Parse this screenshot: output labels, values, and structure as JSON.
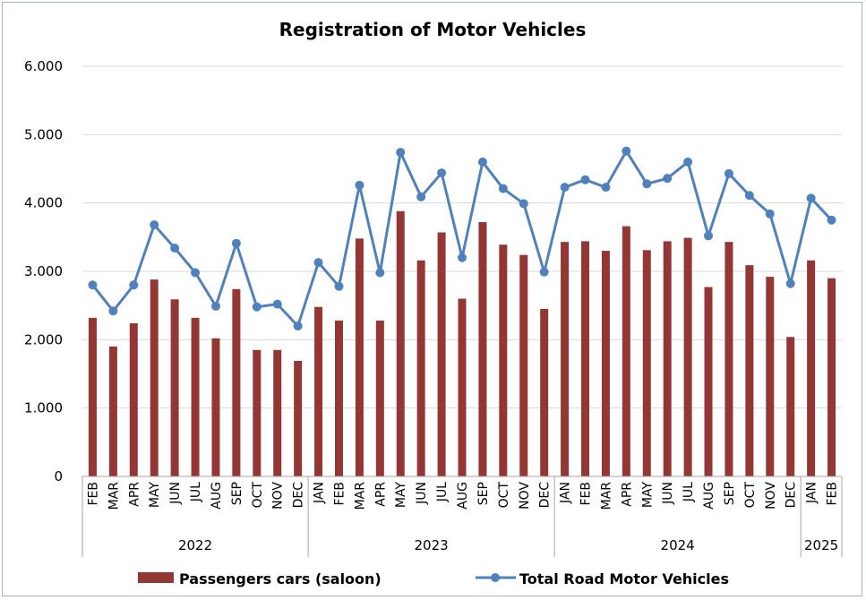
{
  "chart_data": {
    "type": "bar",
    "title": "Registration of Motor Vehicles",
    "xlabel": "",
    "ylabel": "",
    "ylim": [
      0,
      6000
    ],
    "yticks": [
      0,
      1000,
      2000,
      3000,
      4000,
      5000,
      6000
    ],
    "ytick_labels": [
      "0",
      "1.000",
      "2.000",
      "3.000",
      "4.000",
      "5.000",
      "6.000"
    ],
    "grid": "horizontal",
    "legend_position": "bottom",
    "categories": [
      "FEB",
      "MAR",
      "APR",
      "MAY",
      "JUN",
      "JUL",
      "AUG",
      "SEP",
      "OCT",
      "NOV",
      "DEC",
      "JAN",
      "FEB",
      "MAR",
      "APR",
      "MAY",
      "JUN",
      "JUL",
      "AUG",
      "SEP",
      "OCT",
      "NOV",
      "DEC",
      "JAN",
      "FEB",
      "MAR",
      "APR",
      "MAY",
      "JUN",
      "JUL",
      "AUG",
      "SEP",
      "OCT",
      "NOV",
      "DEC",
      "JAN",
      "FEB"
    ],
    "year_groups": [
      {
        "label": "2022",
        "count": 11
      },
      {
        "label": "2023",
        "count": 12
      },
      {
        "label": "2024",
        "count": 12
      },
      {
        "label": "2025",
        "count": 2
      }
    ],
    "series": [
      {
        "name": "Passengers cars (saloon)",
        "type": "bar",
        "color": "#943634",
        "values": [
          2320,
          1900,
          2240,
          2880,
          2590,
          2320,
          2020,
          2740,
          1850,
          1850,
          1690,
          2480,
          2280,
          3480,
          2280,
          3880,
          3160,
          3570,
          2600,
          3720,
          3390,
          3240,
          2450,
          3430,
          3440,
          3300,
          3660,
          3310,
          3440,
          3490,
          2770,
          3430,
          3090,
          2920,
          2040,
          3160,
          2900
        ]
      },
      {
        "name": "Total Road Motor Vehicles",
        "type": "line",
        "color": "#4f81bd",
        "values": [
          2800,
          2420,
          2800,
          3680,
          3340,
          2980,
          2490,
          3410,
          2480,
          2520,
          2200,
          3130,
          2780,
          4260,
          2980,
          4740,
          4090,
          4440,
          3200,
          4600,
          4210,
          3990,
          2990,
          4230,
          4340,
          4230,
          4760,
          4280,
          4360,
          4600,
          3520,
          4430,
          4110,
          3840,
          2820,
          4070,
          3750
        ]
      }
    ]
  },
  "colors": {
    "grid": "#d9d9d9",
    "axis": "#a6a6a6"
  }
}
